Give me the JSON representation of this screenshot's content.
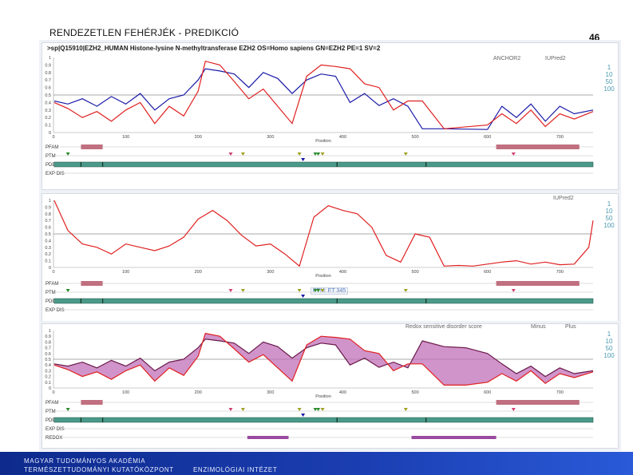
{
  "slide": {
    "title": "RENDEZETLEN FEHÉRJÉK - PREDIKCIÓ",
    "page_number": "46"
  },
  "panels": [
    {
      "header": ">sp|Q15910|EZH2_HUMAN Histone-lysine N-methyltransferase EZH2 OS=Homo sapiens GN=EZH2 PE=1 SV=2",
      "legend": [
        "ANCHOR2",
        "IUPred2"
      ],
      "colors": {
        "line1": "#1a1aa8",
        "line2": "#e02020"
      },
      "side_buttons": "1 10 50 100",
      "track_labels": [
        "PFAM",
        "PTM",
        "PDB",
        "EXP DIS"
      ]
    },
    {
      "header": "",
      "legend": [
        "IUPred2"
      ],
      "colors": {
        "line1": "#e02020"
      },
      "side_buttons": "1 10 50 100",
      "tooltip": "PTM: ET 345",
      "track_labels": [
        "PFAM",
        "PTM",
        "PDB",
        "EXP DIS"
      ]
    },
    {
      "header": "",
      "legend": [
        "Redox sensitive disorder score",
        "Minus",
        "Plus"
      ],
      "colors": {
        "line1": "#6a1a4a",
        "line2": "#e02020",
        "fill": "#c070b8"
      },
      "side_buttons": "1 10 50 100",
      "track_labels": [
        "PFAM",
        "PTM",
        "PDB",
        "EXP DIS",
        "REDOX"
      ]
    }
  ],
  "axis": {
    "xlabel": "Position",
    "ylabel": "Score",
    "x_ticks": [
      "0",
      "100",
      "200",
      "300",
      "400",
      "500",
      "600",
      "700"
    ],
    "y_ticks": [
      "0",
      "0.1",
      "0.2",
      "0.3",
      "0.4",
      "0.5",
      "0.6",
      "0.7",
      "0.8",
      "0.9",
      "1"
    ]
  },
  "chart_data": [
    {
      "type": "line",
      "xlabel": "Position",
      "ylabel": "Score",
      "xlim": [
        0,
        746
      ],
      "ylim": [
        0,
        1
      ],
      "series": [
        {
          "name": "ANCHOR2",
          "x": [
            1,
            20,
            40,
            60,
            80,
            100,
            120,
            140,
            160,
            180,
            200,
            210,
            230,
            250,
            270,
            290,
            310,
            330,
            350,
            370,
            390,
            410,
            430,
            450,
            470,
            490,
            510,
            540,
            600,
            620,
            640,
            660,
            680,
            700,
            720,
            746
          ],
          "y": [
            0.42,
            0.38,
            0.45,
            0.35,
            0.48,
            0.38,
            0.52,
            0.3,
            0.45,
            0.5,
            0.7,
            0.85,
            0.82,
            0.78,
            0.6,
            0.8,
            0.72,
            0.52,
            0.7,
            0.78,
            0.75,
            0.4,
            0.52,
            0.36,
            0.45,
            0.35,
            0.05,
            0.05,
            0.04,
            0.35,
            0.2,
            0.38,
            0.15,
            0.35,
            0.25,
            0.3
          ]
        },
        {
          "name": "IUPred2",
          "x": [
            1,
            20,
            40,
            60,
            80,
            100,
            120,
            140,
            160,
            180,
            200,
            210,
            230,
            250,
            270,
            290,
            310,
            330,
            350,
            370,
            390,
            410,
            430,
            450,
            470,
            490,
            510,
            540,
            600,
            620,
            640,
            660,
            680,
            700,
            720,
            746
          ],
          "y": [
            0.4,
            0.32,
            0.2,
            0.28,
            0.15,
            0.3,
            0.4,
            0.12,
            0.35,
            0.22,
            0.55,
            0.95,
            0.9,
            0.68,
            0.45,
            0.58,
            0.35,
            0.12,
            0.75,
            0.9,
            0.88,
            0.85,
            0.65,
            0.6,
            0.3,
            0.42,
            0.42,
            0.05,
            0.1,
            0.25,
            0.12,
            0.3,
            0.08,
            0.25,
            0.18,
            0.28
          ]
        }
      ]
    },
    {
      "type": "line",
      "xlabel": "Position",
      "ylabel": "Score",
      "xlim": [
        0,
        746
      ],
      "ylim": [
        0,
        1
      ],
      "series": [
        {
          "name": "IUPred2",
          "x": [
            1,
            20,
            40,
            60,
            80,
            100,
            120,
            140,
            160,
            180,
            200,
            220,
            240,
            260,
            280,
            300,
            320,
            340,
            360,
            380,
            400,
            420,
            440,
            460,
            480,
            500,
            520,
            540,
            560,
            580,
            600,
            620,
            640,
            660,
            680,
            700,
            720,
            740,
            746
          ],
          "y": [
            1.0,
            0.55,
            0.35,
            0.3,
            0.2,
            0.35,
            0.3,
            0.25,
            0.32,
            0.45,
            0.72,
            0.85,
            0.7,
            0.48,
            0.32,
            0.35,
            0.2,
            0.02,
            0.75,
            0.92,
            0.85,
            0.8,
            0.6,
            0.18,
            0.08,
            0.5,
            0.45,
            0.02,
            0.03,
            0.02,
            0.05,
            0.08,
            0.1,
            0.05,
            0.08,
            0.04,
            0.05,
            0.3,
            0.7
          ]
        }
      ]
    },
    {
      "type": "area",
      "xlabel": "Position",
      "ylabel": "Score",
      "xlim": [
        0,
        746
      ],
      "ylim": [
        0,
        1
      ],
      "series": [
        {
          "name": "Minus",
          "x": [
            1,
            20,
            40,
            60,
            80,
            100,
            120,
            140,
            160,
            180,
            200,
            210,
            230,
            250,
            270,
            290,
            310,
            330,
            350,
            370,
            390,
            410,
            430,
            450,
            470,
            490,
            510,
            540,
            570,
            600,
            620,
            640,
            660,
            680,
            700,
            720,
            746
          ],
          "y": [
            0.42,
            0.38,
            0.45,
            0.35,
            0.48,
            0.38,
            0.52,
            0.3,
            0.45,
            0.5,
            0.7,
            0.85,
            0.82,
            0.78,
            0.6,
            0.8,
            0.72,
            0.52,
            0.7,
            0.78,
            0.75,
            0.4,
            0.52,
            0.36,
            0.45,
            0.35,
            0.82,
            0.72,
            0.7,
            0.6,
            0.42,
            0.25,
            0.38,
            0.2,
            0.35,
            0.25,
            0.3
          ]
        },
        {
          "name": "Plus",
          "x": [
            1,
            20,
            40,
            60,
            80,
            100,
            120,
            140,
            160,
            180,
            200,
            210,
            230,
            250,
            270,
            290,
            310,
            330,
            350,
            370,
            390,
            410,
            430,
            450,
            470,
            490,
            510,
            540,
            570,
            600,
            620,
            640,
            660,
            680,
            700,
            720,
            746
          ],
          "y": [
            0.4,
            0.32,
            0.2,
            0.28,
            0.15,
            0.3,
            0.4,
            0.12,
            0.35,
            0.22,
            0.55,
            0.95,
            0.9,
            0.68,
            0.45,
            0.58,
            0.35,
            0.12,
            0.75,
            0.9,
            0.88,
            0.85,
            0.65,
            0.6,
            0.3,
            0.42,
            0.42,
            0.05,
            0.05,
            0.1,
            0.25,
            0.12,
            0.3,
            0.08,
            0.25,
            0.18,
            0.28
          ]
        }
      ]
    }
  ],
  "footer": {
    "line1": "MAGYAR TUDOMÁNYOS AKADÉMIA",
    "line2": "TERMÉSZETTUDOMÁNYI KUTATÓKÖZPONT",
    "line3": "ENZIMOLÓGIAI INTÉZET"
  }
}
